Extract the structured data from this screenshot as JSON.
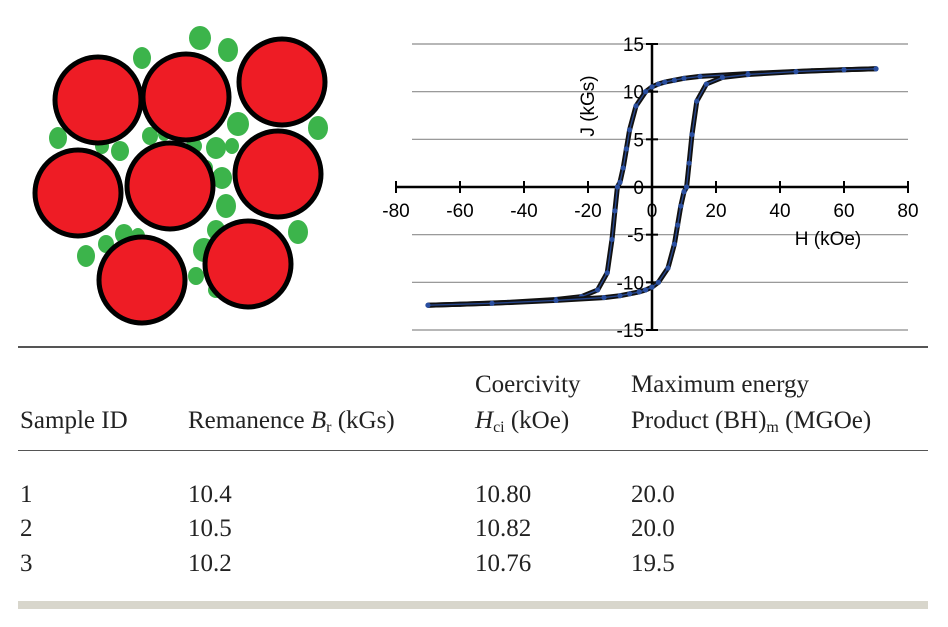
{
  "microstructure": {
    "large_grain_color": "#ee1c25",
    "small_particle_color": "#3cb44b",
    "outline_color": "#000000",
    "icon": "grain-microstructure-diagram"
  },
  "chart_data": {
    "type": "line",
    "xlabel": "H (kOe)",
    "ylabel": "J (kGs)",
    "xlim": [
      -80,
      80
    ],
    "ylim": [
      -15,
      15
    ],
    "x_ticks": [
      "-80",
      "-60",
      "-40",
      "-20",
      "0",
      "20",
      "40",
      "80"
    ],
    "x_tick_values": [
      -80,
      -60,
      -40,
      -20,
      0,
      20,
      40,
      80
    ],
    "x_tick_extra": {
      "label": "60",
      "value": 60
    },
    "y_ticks": [
      "15",
      "10",
      "5",
      "0",
      "-5",
      "-10",
      "-15"
    ],
    "y_tick_values": [
      15,
      10,
      5,
      0,
      -5,
      -10,
      -15
    ],
    "grid": true,
    "series": [
      {
        "color": "#111111",
        "values_note_free": true,
        "x": [
          70,
          50,
          30,
          15,
          10,
          7,
          4,
          2,
          0,
          -2,
          -5,
          -7,
          -8,
          -9,
          -10,
          -10.8,
          -11.6,
          -12.5,
          -14,
          -17,
          -22,
          -30,
          -45,
          -60,
          -70
        ],
        "y": [
          12.4,
          12.2,
          11.9,
          11.6,
          11.4,
          11.2,
          11.0,
          10.8,
          10.5,
          10.0,
          8.5,
          6.0,
          4.0,
          2.0,
          0.5,
          0,
          -2.5,
          -5.5,
          -9.0,
          -10.8,
          -11.5,
          -11.8,
          -12.1,
          -12.3,
          -12.4
        ]
      },
      {
        "color": "#111111",
        "x": [
          -70,
          -50,
          -30,
          -15,
          -10,
          -7,
          -4,
          -2,
          0,
          2,
          5,
          7,
          8,
          9,
          10,
          10.8,
          11.6,
          12.5,
          14,
          17,
          22,
          30,
          45,
          60,
          70
        ],
        "y": [
          -12.4,
          -12.2,
          -11.9,
          -11.6,
          -11.4,
          -11.2,
          -11.0,
          -10.8,
          -10.5,
          -10.0,
          -8.5,
          -6.0,
          -4.0,
          -2.0,
          -0.5,
          0,
          2.5,
          5.5,
          9.0,
          10.8,
          11.5,
          11.8,
          12.1,
          12.3,
          12.4
        ]
      }
    ],
    "marker_color": "#2a4fa0"
  },
  "table": {
    "headers": {
      "col1": "Sample ID",
      "col2_text": "Remanence ",
      "col2_sym": "B",
      "col2_sub": "r",
      "col2_unit": " (kGs)",
      "col3_line1": "Coercivity",
      "col3_sym": "H",
      "col3_sub": "ci",
      "col3_unit": " (kOe)",
      "col4_line1": "Maximum energy",
      "col4_text": "Product (BH)",
      "col4_sub": "m",
      "col4_unit": " (MGOe)"
    },
    "rows": [
      {
        "id": "1",
        "remanence": "10.4",
        "coercivity": "10.80",
        "energy": "20.0"
      },
      {
        "id": "2",
        "remanence": "10.5",
        "coercivity": "10.82",
        "energy": "20.0"
      },
      {
        "id": "3",
        "remanence": "10.2",
        "coercivity": "10.76",
        "energy": "19.5"
      }
    ]
  }
}
